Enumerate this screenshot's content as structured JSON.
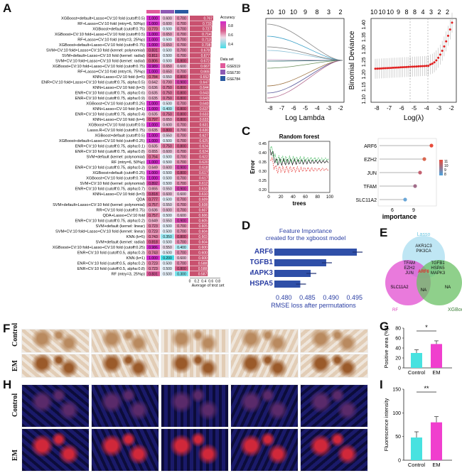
{
  "panels": {
    "A": {
      "label": "A",
      "methods": [
        "XGBoost+default+Lasso+CV:10 fold (cutoff:0.5)",
        "RF+Lasso+CV:10 fold (mtry=6, 50%p)",
        "XGBoost+default (cutoff:0.75)",
        "XGBoost+CV:10 fold+Lasso+CV:10 fold (cutoff:0.5)",
        "RF+Lasso+CV:10 fold (mtry=3, 25%p)",
        "XGBoost+default+Lasso+CV:10 fold (cutoff:0.75)",
        "SVM+CV:10 fold+Lasso+CV:10 fold (kernel: polynomial)",
        "SVM+default+Lasso+CV:10 fold (kernel: radial)",
        "SVM+CV:10 fold+Lasso+CV:10 fold (kernel: radial)",
        "XGBoost+CV:10 fold+Lasso+CV:10 fold (cutoff:0.75)",
        "RF+Lasso+CV:10 fold (mtry=6, 75%p)",
        "KNN+Lasso+CV:10 fold (k=5)",
        "ENR+CV:10 fold+Lasso+CV:10 fold (cutoff:0.75, alpha:0.5)",
        "KNN+Lasso+CV:10 fold (k=3)",
        "ENR+CV:10 fold (cutoff:0.75, alpha:0.6)",
        "ENR+CV:10 fold (cutoff:0.75, alpha:0.9)",
        "XGBoost+CV:10 fold (cutoff:0.25)",
        "KNN+Lasso+CV:10 fold (k=1)",
        "ENR+CV:10 fold (cutoff:0.75, alpha:0.4)",
        "KNN+Lasso+CV:10 fold (k=4)",
        "XGBoost+CV:10 fold (cutoff:0.5)",
        "Lasso.R+CV:10 fold (cutoff:0.75)",
        "XGBoost+default (cutoff:0.5)",
        "XGBoost+default+Lasso+CV:10 fold (cutoff:0.25)",
        "ENR+CV:10 fold (cutoff:0.75, alpha:0.1)",
        "ENR+CV:10 fold (cutoff:0.75, alpha:0.8)",
        "SVM+default (kernel: polynomial)",
        "RF (mtry=6, 50%p)",
        "ENR+CV:10 fold (cutoff:0.75, alpha:0.3)",
        "XGBoost+default (cutoff:0.25)",
        "XGBoost+CV:10 fold (cutoff:0.75)",
        "SVM+CV:10 fold (kernel: polynomial)",
        "ENR+CV:10 fold (cutoff:0.75, alpha:0.7)",
        "KNN+Lasso+CV:10 fold (k=3)",
        "QDA",
        "SVM+default+Lasso+CV:10 fold (kernel: polynomial)",
        "RR+CV:10 fold (cutoff:0.75)",
        "QDA+Lasso+CV:10 fold",
        "ENR+CV:10 fold (cutoff:0.75, alpha:0.2)",
        "SVM+default (kernel: linear)",
        "SVM+CV:10 fold+Lasso+CV:10 fold (kernel: linear)",
        "KNN (k=5)",
        "SVM+default (kernel: radial)",
        "XGBoost+CV:10 fold+Lasso+CV:10 fold (cutoff:0.25)",
        "ENR+CV:10 fold (cutoff:0.5, alpha:0.3)",
        "KNN (k=1)",
        "ENR+CV:10 fold (cutoff:0.5, alpha:0.2)",
        "ENR+CV:10 fold (cutoff:0.5, alpha:0.8)",
        "RF (mtry=3, 25%p)"
      ],
      "col1": [
        "1.000",
        "1.000",
        "0.770",
        "1.000",
        "1.000",
        "1.000",
        "0.831",
        "0.811",
        "0.806",
        "0.989",
        "1.000",
        "0.784",
        "0.642",
        "0.636",
        "0.635",
        "0.635",
        "1.000",
        "1.000",
        "0.635",
        "0.797",
        "1.000",
        "0.635",
        "1.000",
        "1.000",
        "0.635",
        "0.655",
        "0.764",
        "1.000",
        "0.649",
        "1.000",
        "1.000",
        "0.892",
        "0.655",
        "0.818",
        "0.777",
        "0.757",
        "0.636",
        "0.757",
        "0.649",
        "0.723",
        "0.723",
        "0.743",
        "0.818",
        "0.986",
        "0.743",
        "1.000",
        "0.723",
        "0.723",
        "0.831"
      ],
      "col2": [
        "0.600",
        "0.600",
        "0.500",
        "0.650",
        "0.500",
        "0.650",
        "0.500",
        "0.500",
        "0.500",
        "0.650",
        "0.650",
        "0.550",
        "0.700",
        "0.750",
        "0.750",
        "0.750",
        "0.500",
        "0.400",
        "0.750",
        "0.650",
        "0.600",
        "0.800",
        "0.550",
        "0.500",
        "0.750",
        "0.600",
        "0.500",
        "0.500",
        "0.600",
        "0.500",
        "0.500",
        "0.500",
        "0.550",
        "0.600",
        "0.500",
        "0.550",
        "0.600",
        "0.500",
        "0.550",
        "0.500",
        "0.500",
        "0.350",
        "0.500",
        "0.550",
        "0.500",
        "0.200",
        "0.500",
        "0.500",
        "0.500"
      ],
      "col3": [
        "0.700",
        "0.700",
        "0.700",
        "0.700",
        "0.700",
        "0.700",
        "0.700",
        "0.700",
        "0.800",
        "0.600",
        "0.700",
        "0.800",
        "0.900",
        "0.800",
        "0.800",
        "0.800",
        "0.700",
        "0.800",
        "0.800",
        "0.800",
        "0.700",
        "0.700",
        "0.700",
        "0.700",
        "0.800",
        "0.700",
        "0.700",
        "0.700",
        "0.900",
        "0.800",
        "0.700",
        "0.700",
        "0.900",
        "0.600",
        "0.700",
        "0.700",
        "0.700",
        "0.600",
        "0.900",
        "0.700",
        "0.700",
        "0.800",
        "0.700",
        "0.400",
        "0.700",
        "0.600",
        "0.700",
        "0.800",
        "0.300"
      ],
      "avg": [
        "0.767",
        "0.733",
        "0.727",
        "0.714",
        "0.713",
        "0.708",
        "0.678",
        "0.677",
        "0.672",
        "0.667",
        "0.665",
        "0.652",
        "0.647",
        "0.644",
        "0.643",
        "0.643",
        "0.640",
        "0.637",
        "0.633",
        "0.633",
        "0.631",
        "0.630",
        "0.627",
        "0.625",
        "0.624",
        "0.624",
        "0.622",
        "0.620",
        "0.618",
        "0.617",
        "0.617",
        "0.612",
        "0.610",
        "0.610",
        "0.609",
        "0.608",
        "0.607",
        "0.606",
        "0.605",
        "0.605",
        "0.604",
        "0.603",
        "0.604",
        "0.600",
        "0.600",
        "0.600",
        "0.588",
        "0.588",
        "0.587"
      ],
      "xaxis_ticks": [
        "0",
        "0.2",
        "0.4",
        "0.6",
        "0.8"
      ],
      "xaxis_label": "Average of test set",
      "legend_title": "Accuracy",
      "legend_ticks": [
        "0.8",
        "0.6",
        "0.4"
      ],
      "dataset_title": "Data set",
      "datasets": [
        "GSE51981",
        "GSE7305",
        "GSE7846"
      ],
      "colors": {
        "c1": "#e05a9b",
        "c2": "#8e59b3",
        "c3": "#2b5aa1"
      }
    },
    "B": {
      "label": "B",
      "left_top_ticks": [
        "10",
        "10",
        "10",
        "9",
        "8",
        "3",
        "2"
      ],
      "right_top_ticks": [
        "10",
        "10",
        "10",
        "9",
        "8",
        "8",
        "4",
        "3",
        "2",
        "2"
      ],
      "left_xlabel": "Log Lambda",
      "left_xticks": [
        "-8",
        "-7",
        "-6",
        "-5",
        "-4",
        "-3",
        "-2"
      ],
      "right_xlabel": "Log(λ)",
      "right_xticks": [
        "-8",
        "-7",
        "-6",
        "-5",
        "-4",
        "-3",
        "-2"
      ],
      "right_ylabel": "Binomial Deviance",
      "right_yticks": [
        "1.10",
        "1.15",
        "1.20",
        "1.25",
        "1.30",
        "1.35",
        "1.40"
      ]
    },
    "C": {
      "label": "C",
      "title": "Random forest",
      "ylabel": "Error",
      "yticks": [
        "0.20",
        "0.25",
        "0.30",
        "0.35",
        "0.40",
        "0.45"
      ],
      "xlabel": "trees",
      "xticks": [
        "0",
        "20",
        "40",
        "60",
        "80",
        "100"
      ],
      "imp_xlabel": "importance",
      "imp_genes": [
        "ARF6",
        "EZH2",
        "JUN",
        "TFAM",
        "SLC11A2"
      ],
      "imp_values": [
        11.5,
        10.5,
        9.9,
        9.2,
        7.8
      ],
      "imp_xticks": [
        "6",
        "9"
      ],
      "imp_legend": [
        "11",
        "10",
        "9",
        "8"
      ]
    },
    "D": {
      "label": "D",
      "title1": "Feature Importance",
      "title2": "created for the xgboost model",
      "genes": [
        "ARF6",
        "TGFB1",
        "MAPK3",
        "HSPA5"
      ],
      "values": [
        0.4955,
        0.489,
        0.4857,
        0.4835
      ],
      "xticks": [
        "0.480",
        "0.485",
        "0.490",
        "0.495"
      ],
      "xlabel": "RMSE loss after permutations"
    },
    "E": {
      "label": "E",
      "set_lasso": "Lasso",
      "set_rf": "RF",
      "set_xgb": "XGBoost",
      "lasso_only": "AKR1C3\nPIK3CA",
      "rf_lasso": "TFAM\nEZH2\nJUN",
      "xgb_lasso": "TGFB1\nHSPA5\nMAPK3",
      "center": "ARF6",
      "rf_only": "SLC11A2",
      "rf_xgb": "NA",
      "xgb_only": "NA"
    },
    "F": {
      "label": "F",
      "rows": [
        "Control",
        "EM"
      ]
    },
    "G": {
      "label": "G",
      "ylabel": "Positive area (%)",
      "yticks": [
        "0",
        "20",
        "40",
        "60",
        "80"
      ],
      "categories": [
        "Control",
        "EM"
      ],
      "values": [
        30,
        48
      ],
      "sig": "*"
    },
    "H": {
      "label": "H",
      "rows": [
        "Control",
        "EM"
      ]
    },
    "I": {
      "label": "I",
      "ylabel": "Fluorescence intensity",
      "yticks": [
        "0",
        "50",
        "100",
        "150"
      ],
      "categories": [
        "Control",
        "EM"
      ],
      "values": [
        48,
        80
      ],
      "sig": "**"
    }
  },
  "chart_data": [
    {
      "type": "bar",
      "title": "",
      "categories": [
        "Control",
        "EM"
      ],
      "values": [
        30,
        48
      ],
      "ylabel": "Positive area (%)",
      "ylim": [
        0,
        80
      ]
    },
    {
      "type": "bar",
      "title": "",
      "categories": [
        "Control",
        "EM"
      ],
      "values": [
        48,
        80
      ],
      "ylabel": "Fluorescence intensity",
      "ylim": [
        0,
        150
      ]
    },
    {
      "type": "bar",
      "title": "Feature Importance created for the xgboost model",
      "categories": [
        "ARF6",
        "TGFB1",
        "MAPK3",
        "HSPA5"
      ],
      "values": [
        0.4955,
        0.489,
        0.4857,
        0.4835
      ],
      "xlabel": "RMSE loss after permutations",
      "xlim": [
        0.478,
        0.497
      ]
    },
    {
      "type": "scatter",
      "title": "",
      "categories": [
        "ARF6",
        "EZH2",
        "JUN",
        "TFAM",
        "SLC11A2"
      ],
      "values": [
        11.5,
        10.5,
        9.9,
        9.2,
        7.8
      ],
      "xlabel": "importance"
    }
  ]
}
